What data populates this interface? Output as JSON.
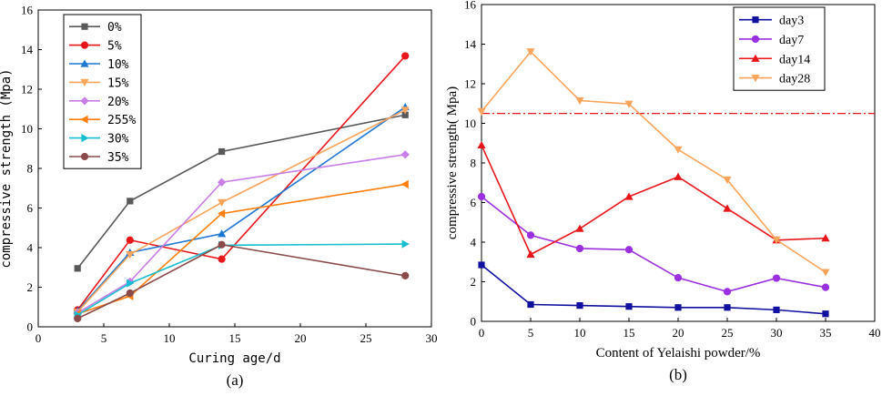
{
  "chart_data": [
    {
      "panel_label": "(a)",
      "type": "line",
      "title": "",
      "xlabel": "Curing age/d",
      "ylabel": "compressive strength (Mpa)",
      "xlim": [
        0,
        30
      ],
      "ylim": [
        0,
        16
      ],
      "xticks": [
        0,
        5,
        10,
        15,
        20,
        25,
        30
      ],
      "yticks": [
        0,
        2,
        4,
        6,
        8,
        10,
        12,
        14,
        16
      ],
      "legend_position": "top-left",
      "x": [
        3,
        7,
        14,
        28
      ],
      "series": [
        {
          "name": "0%",
          "color": "#595959",
          "marker": "square",
          "values": [
            2.95,
            6.35,
            8.85,
            10.7
          ]
        },
        {
          "name": "5%",
          "color": "#e8161b",
          "marker": "circle",
          "values": [
            0.85,
            4.38,
            3.42,
            13.68
          ]
        },
        {
          "name": "10%",
          "color": "#1f77d4",
          "marker": "triangle-up",
          "values": [
            0.8,
            3.75,
            4.7,
            11.1
          ]
        },
        {
          "name": "15%",
          "color": "#fba55c",
          "marker": "triangle-down",
          "values": [
            0.75,
            3.65,
            6.28,
            10.95
          ]
        },
        {
          "name": "20%",
          "color": "#c97de6",
          "marker": "diamond",
          "values": [
            0.7,
            2.28,
            7.3,
            8.7
          ]
        },
        {
          "name": "255%",
          "color": "#ff7f0e",
          "marker": "triangle-left",
          "values": [
            0.65,
            1.55,
            5.72,
            7.2
          ]
        },
        {
          "name": "30%",
          "color": "#17becf",
          "marker": "triangle-right",
          "values": [
            0.6,
            2.2,
            4.12,
            4.18
          ]
        },
        {
          "name": "35%",
          "color": "#8b4a4a",
          "marker": "circle",
          "values": [
            0.42,
            1.7,
            4.15,
            2.58
          ]
        }
      ]
    },
    {
      "panel_label": "(b)",
      "type": "line",
      "title": "",
      "xlabel": "Content of Yelaishi powder/%",
      "ylabel": "compressive strength(  Mpa)",
      "xlim": [
        0,
        40
      ],
      "ylim": [
        0,
        16
      ],
      "xticks": [
        0,
        5,
        10,
        15,
        20,
        25,
        30,
        35,
        40
      ],
      "yticks": [
        0,
        2,
        4,
        6,
        8,
        10,
        12,
        14,
        16
      ],
      "legend_position": "top-right",
      "x": [
        0,
        5,
        10,
        15,
        20,
        25,
        30,
        35
      ],
      "reference_line": {
        "y": 10.5,
        "color": "#e8161b",
        "style": "dash-dot"
      },
      "series": [
        {
          "name": "day3",
          "color": "#1010a0",
          "marker": "square",
          "values": [
            2.85,
            0.85,
            0.8,
            0.75,
            0.7,
            0.7,
            0.58,
            0.38
          ]
        },
        {
          "name": "day7",
          "color": "#9b30e0",
          "marker": "circle",
          "values": [
            6.3,
            4.35,
            3.68,
            3.62,
            2.2,
            1.5,
            2.18,
            1.72
          ]
        },
        {
          "name": "day14",
          "color": "#e8161b",
          "marker": "triangle-up",
          "values": [
            8.9,
            3.38,
            4.68,
            6.3,
            7.3,
            5.7,
            4.1,
            4.2
          ]
        },
        {
          "name": "day28",
          "color": "#fba55c",
          "marker": "triangle-down",
          "values": [
            10.6,
            13.62,
            11.15,
            10.98,
            8.68,
            7.15,
            4.12,
            2.48
          ]
        }
      ]
    }
  ]
}
